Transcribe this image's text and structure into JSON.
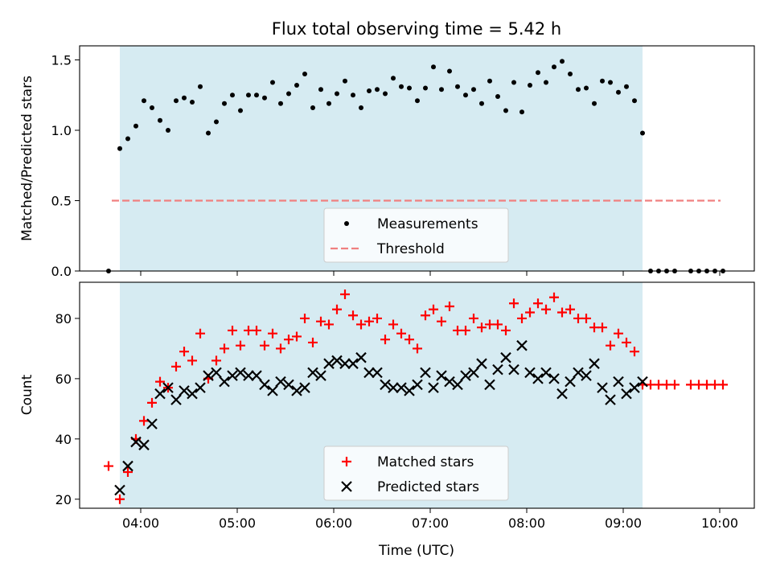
{
  "chart_data": [
    {
      "type": "scatter",
      "title": "Flux total observing time = 5.42 h",
      "xlabel": "",
      "ylabel": "Matched/Predicted stars",
      "ylim": [
        0,
        1.6
      ],
      "yticks": [
        "0.0",
        "0.5",
        "1.0",
        "1.5"
      ],
      "grid": false,
      "legend_position": "bottom-center",
      "shaded_interval": [
        "03:47",
        "09:12"
      ],
      "threshold": {
        "name": "Threshold",
        "value": 0.5,
        "color": "#f08080"
      },
      "series": [
        {
          "name": "Measurements",
          "color": "#000000",
          "marker": "dot",
          "x": [
            "03:40",
            "03:47",
            "03:52",
            "03:57",
            "04:02",
            "04:07",
            "04:12",
            "04:17",
            "04:22",
            "04:27",
            "04:32",
            "04:37",
            "04:42",
            "04:47",
            "04:52",
            "04:57",
            "05:02",
            "05:07",
            "05:12",
            "05:17",
            "05:22",
            "05:27",
            "05:32",
            "05:37",
            "05:42",
            "05:47",
            "05:52",
            "05:57",
            "06:02",
            "06:07",
            "06:12",
            "06:17",
            "06:22",
            "06:27",
            "06:32",
            "06:37",
            "06:42",
            "06:47",
            "06:52",
            "06:57",
            "07:02",
            "07:07",
            "07:12",
            "07:17",
            "07:22",
            "07:27",
            "07:32",
            "07:37",
            "07:42",
            "07:47",
            "07:52",
            "07:57",
            "08:02",
            "08:07",
            "08:12",
            "08:17",
            "08:22",
            "08:27",
            "08:32",
            "08:37",
            "08:42",
            "08:47",
            "08:52",
            "08:57",
            "09:02",
            "09:07",
            "09:12",
            "09:17",
            "09:22",
            "09:27",
            "09:32",
            "09:42",
            "09:47",
            "09:52",
            "09:57",
            "10:02"
          ],
          "y": [
            0,
            0.87,
            0.94,
            1.03,
            1.21,
            1.16,
            1.07,
            1.0,
            1.21,
            1.23,
            1.2,
            1.31,
            0.98,
            1.06,
            1.19,
            1.25,
            1.14,
            1.25,
            1.25,
            1.23,
            1.34,
            1.19,
            1.26,
            1.32,
            1.4,
            1.16,
            1.29,
            1.19,
            1.26,
            1.35,
            1.25,
            1.16,
            1.28,
            1.29,
            1.26,
            1.37,
            1.31,
            1.3,
            1.21,
            1.3,
            1.45,
            1.29,
            1.42,
            1.31,
            1.25,
            1.29,
            1.19,
            1.35,
            1.24,
            1.14,
            1.34,
            1.13,
            1.32,
            1.41,
            1.34,
            1.45,
            1.49,
            1.4,
            1.29,
            1.3,
            1.19,
            1.35,
            1.34,
            1.27,
            1.31,
            1.21,
            0.98,
            0,
            0,
            0,
            0,
            0,
            0,
            0,
            0,
            0
          ]
        }
      ]
    },
    {
      "type": "scatter",
      "title": "",
      "xlabel": "Time (UTC)",
      "ylabel": "Count",
      "ylim": [
        17,
        92
      ],
      "yticks": [
        "20",
        "40",
        "60",
        "80"
      ],
      "xticks": [
        "04:00",
        "05:00",
        "06:00",
        "07:00",
        "08:00",
        "09:00",
        "10:00"
      ],
      "grid": false,
      "legend_position": "bottom-center",
      "shaded_interval": [
        "03:47",
        "09:12"
      ],
      "series": [
        {
          "name": "Matched stars",
          "color": "#ff0000",
          "marker": "plus",
          "x": [
            "03:40",
            "03:47",
            "03:52",
            "03:57",
            "04:02",
            "04:07",
            "04:12",
            "04:17",
            "04:22",
            "04:27",
            "04:32",
            "04:37",
            "04:42",
            "04:47",
            "04:52",
            "04:57",
            "05:02",
            "05:07",
            "05:12",
            "05:17",
            "05:22",
            "05:27",
            "05:32",
            "05:37",
            "05:42",
            "05:47",
            "05:52",
            "05:57",
            "06:02",
            "06:07",
            "06:12",
            "06:17",
            "06:22",
            "06:27",
            "06:32",
            "06:37",
            "06:42",
            "06:47",
            "06:52",
            "06:57",
            "07:02",
            "07:07",
            "07:12",
            "07:17",
            "07:22",
            "07:27",
            "07:32",
            "07:37",
            "07:42",
            "07:47",
            "07:52",
            "07:57",
            "08:02",
            "08:07",
            "08:12",
            "08:17",
            "08:22",
            "08:27",
            "08:32",
            "08:37",
            "08:42",
            "08:47",
            "08:52",
            "08:57",
            "09:02",
            "09:07",
            "09:12",
            "09:17",
            "09:22",
            "09:27",
            "09:32",
            "09:42",
            "09:47",
            "09:52",
            "09:57",
            "10:02"
          ],
          "y": [
            31,
            20,
            29,
            40,
            46,
            52,
            59,
            57,
            64,
            69,
            66,
            75,
            60,
            66,
            70,
            76,
            71,
            76,
            76,
            71,
            75,
            70,
            73,
            74,
            80,
            72,
            79,
            78,
            83,
            88,
            81,
            78,
            79,
            80,
            73,
            78,
            75,
            73,
            70,
            81,
            83,
            79,
            84,
            76,
            76,
            80,
            77,
            78,
            78,
            76,
            85,
            80,
            82,
            85,
            83,
            87,
            82,
            83,
            80,
            80,
            77,
            77,
            71,
            75,
            72,
            69,
            58,
            58,
            58,
            58,
            58,
            58,
            58,
            58,
            58,
            58
          ]
        },
        {
          "name": "Predicted stars",
          "color": "#000000",
          "marker": "x",
          "x": [
            "03:47",
            "03:52",
            "03:57",
            "04:02",
            "04:07",
            "04:12",
            "04:17",
            "04:22",
            "04:27",
            "04:32",
            "04:37",
            "04:42",
            "04:47",
            "04:52",
            "04:57",
            "05:02",
            "05:07",
            "05:12",
            "05:17",
            "05:22",
            "05:27",
            "05:32",
            "05:37",
            "05:42",
            "05:47",
            "05:52",
            "05:57",
            "06:02",
            "06:07",
            "06:12",
            "06:17",
            "06:22",
            "06:27",
            "06:32",
            "06:37",
            "06:42",
            "06:47",
            "06:52",
            "06:57",
            "07:02",
            "07:07",
            "07:12",
            "07:17",
            "07:22",
            "07:27",
            "07:32",
            "07:37",
            "07:42",
            "07:47",
            "07:52",
            "07:57",
            "08:02",
            "08:07",
            "08:12",
            "08:17",
            "08:22",
            "08:27",
            "08:32",
            "08:37",
            "08:42",
            "08:47",
            "08:52",
            "08:57",
            "09:02",
            "09:07",
            "09:12"
          ],
          "y": [
            23,
            31,
            39,
            38,
            45,
            55,
            57,
            53,
            56,
            55,
            57,
            61,
            62,
            59,
            61,
            62,
            61,
            61,
            58,
            56,
            59,
            58,
            56,
            57,
            62,
            61,
            65,
            66,
            65,
            65,
            67,
            62,
            62,
            58,
            57,
            57,
            56,
            58,
            62,
            57,
            61,
            59,
            58,
            61,
            62,
            65,
            58,
            63,
            67,
            63,
            71,
            62,
            60,
            62,
            60,
            55,
            59,
            62,
            61,
            65,
            57,
            53,
            59,
            55,
            57,
            59
          ]
        }
      ]
    }
  ]
}
